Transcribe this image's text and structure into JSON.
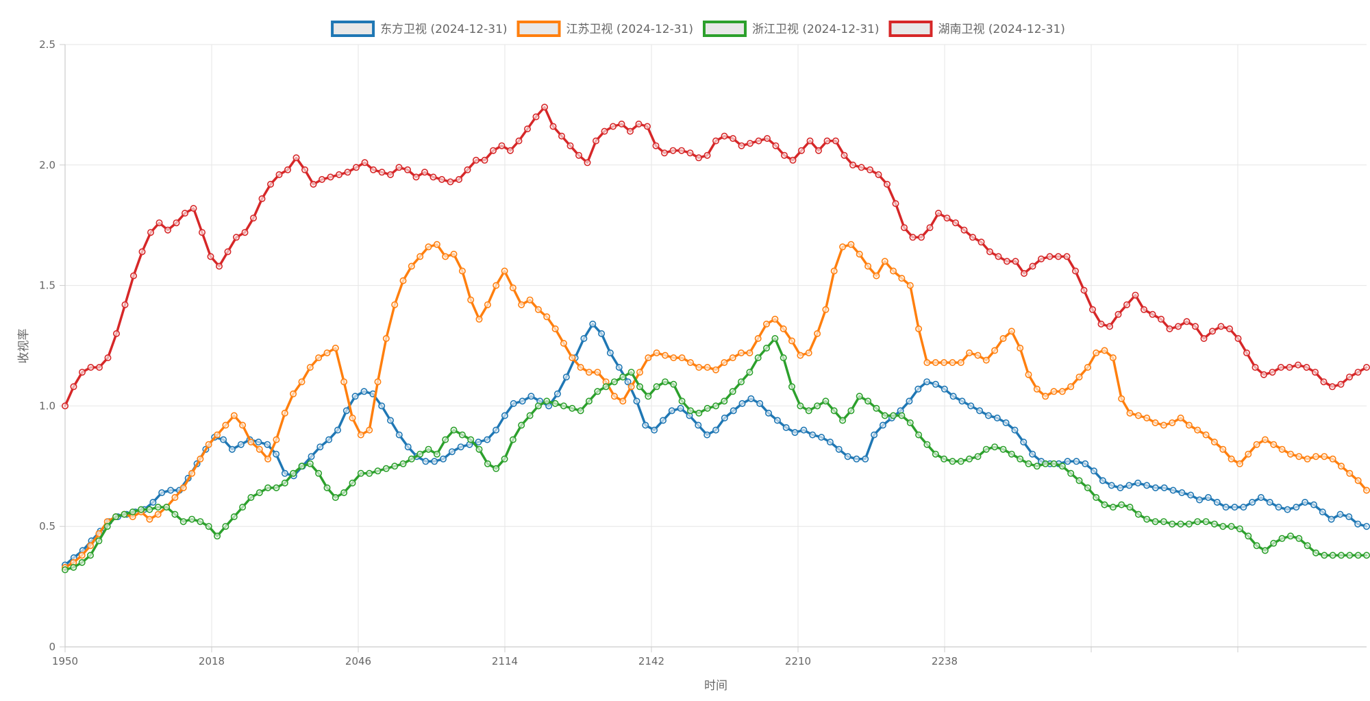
{
  "chart_data": {
    "type": "line",
    "xlabel": "时间",
    "ylabel": "收视率",
    "ylim": [
      0,
      2.5
    ],
    "y_ticks": [
      "0",
      "0.5",
      "1.0",
      "1.5",
      "2.0",
      "2.5"
    ],
    "x_tick_labels": [
      "1950",
      "2018",
      "2046",
      "2114",
      "2142",
      "2210",
      "2238"
    ],
    "grid": true,
    "legend_position": "top-center",
    "series": [
      {
        "name": "东方卫视 (2024-12-31)",
        "color": "#1f77b4",
        "values": [
          0.34,
          0.37,
          0.4,
          0.44,
          0.48,
          0.52,
          0.54,
          0.55,
          0.56,
          0.57,
          0.6,
          0.64,
          0.65,
          0.65,
          0.7,
          0.76,
          0.82,
          0.87,
          0.86,
          0.82,
          0.84,
          0.86,
          0.85,
          0.84,
          0.8,
          0.72,
          0.71,
          0.75,
          0.79,
          0.83,
          0.86,
          0.9,
          0.98,
          1.04,
          1.06,
          1.05,
          1.0,
          0.94,
          0.88,
          0.83,
          0.79,
          0.77,
          0.77,
          0.78,
          0.81,
          0.83,
          0.84,
          0.85,
          0.86,
          0.9,
          0.96,
          1.01,
          1.02,
          1.04,
          1.02,
          1.0,
          1.05,
          1.12,
          1.2,
          1.28,
          1.34,
          1.3,
          1.22,
          1.16,
          1.1,
          1.02,
          0.92,
          0.9,
          0.94,
          0.98,
          0.99,
          0.96,
          0.92,
          0.88,
          0.9,
          0.95,
          0.98,
          1.01,
          1.03,
          1.01,
          0.97,
          0.94,
          0.91,
          0.89,
          0.9,
          0.88,
          0.87,
          0.85,
          0.82,
          0.79,
          0.78,
          0.78,
          0.88,
          0.92,
          0.95,
          0.98,
          1.02,
          1.07,
          1.1,
          1.09,
          1.07,
          1.04,
          1.02,
          1.0,
          0.98,
          0.96,
          0.95,
          0.93,
          0.9,
          0.85,
          0.8,
          0.77,
          0.76,
          0.76,
          0.77,
          0.77,
          0.76,
          0.73,
          0.69,
          0.67,
          0.66,
          0.67,
          0.68,
          0.67,
          0.66,
          0.66,
          0.65,
          0.64,
          0.63,
          0.61,
          0.62,
          0.6,
          0.58,
          0.58,
          0.58,
          0.6,
          0.62,
          0.6,
          0.58,
          0.57,
          0.58,
          0.6,
          0.59,
          0.56,
          0.53,
          0.55,
          0.54,
          0.51,
          0.5
        ]
      },
      {
        "name": "江苏卫视 (2024-12-31)",
        "color": "#ff7f0e",
        "values": [
          0.33,
          0.35,
          0.38,
          0.42,
          0.47,
          0.52,
          0.54,
          0.55,
          0.54,
          0.56,
          0.53,
          0.55,
          0.58,
          0.62,
          0.66,
          0.72,
          0.78,
          0.84,
          0.88,
          0.92,
          0.96,
          0.92,
          0.85,
          0.82,
          0.78,
          0.86,
          0.97,
          1.05,
          1.1,
          1.16,
          1.2,
          1.22,
          1.24,
          1.1,
          0.95,
          0.88,
          0.9,
          1.1,
          1.28,
          1.42,
          1.52,
          1.58,
          1.62,
          1.66,
          1.67,
          1.62,
          1.63,
          1.56,
          1.44,
          1.36,
          1.42,
          1.5,
          1.56,
          1.49,
          1.42,
          1.44,
          1.4,
          1.37,
          1.32,
          1.26,
          1.2,
          1.16,
          1.14,
          1.14,
          1.1,
          1.04,
          1.02,
          1.08,
          1.14,
          1.2,
          1.22,
          1.21,
          1.2,
          1.2,
          1.18,
          1.16,
          1.16,
          1.15,
          1.18,
          1.2,
          1.22,
          1.22,
          1.28,
          1.34,
          1.36,
          1.32,
          1.27,
          1.21,
          1.22,
          1.3,
          1.4,
          1.56,
          1.66,
          1.67,
          1.63,
          1.58,
          1.54,
          1.6,
          1.56,
          1.53,
          1.5,
          1.32,
          1.18,
          1.18,
          1.18,
          1.18,
          1.18,
          1.22,
          1.21,
          1.19,
          1.23,
          1.28,
          1.31,
          1.24,
          1.13,
          1.07,
          1.04,
          1.06,
          1.06,
          1.08,
          1.12,
          1.16,
          1.22,
          1.23,
          1.2,
          1.03,
          0.97,
          0.96,
          0.95,
          0.93,
          0.92,
          0.93,
          0.95,
          0.92,
          0.9,
          0.88,
          0.85,
          0.82,
          0.78,
          0.76,
          0.8,
          0.84,
          0.86,
          0.84,
          0.82,
          0.8,
          0.79,
          0.78,
          0.79,
          0.79,
          0.78,
          0.75,
          0.72,
          0.69,
          0.65
        ]
      },
      {
        "name": "浙江卫视 (2024-12-31)",
        "color": "#2ca02c",
        "values": [
          0.32,
          0.33,
          0.35,
          0.38,
          0.44,
          0.5,
          0.54,
          0.55,
          0.56,
          0.57,
          0.57,
          0.58,
          0.58,
          0.55,
          0.52,
          0.53,
          0.52,
          0.5,
          0.46,
          0.5,
          0.54,
          0.58,
          0.62,
          0.64,
          0.66,
          0.66,
          0.68,
          0.72,
          0.75,
          0.76,
          0.72,
          0.66,
          0.62,
          0.64,
          0.68,
          0.72,
          0.72,
          0.73,
          0.74,
          0.75,
          0.76,
          0.78,
          0.8,
          0.82,
          0.8,
          0.86,
          0.9,
          0.88,
          0.86,
          0.82,
          0.76,
          0.74,
          0.78,
          0.86,
          0.92,
          0.96,
          1.0,
          1.02,
          1.01,
          1.0,
          0.99,
          0.98,
          1.02,
          1.06,
          1.08,
          1.1,
          1.12,
          1.14,
          1.08,
          1.04,
          1.08,
          1.1,
          1.09,
          1.02,
          0.98,
          0.97,
          0.99,
          1.0,
          1.02,
          1.06,
          1.1,
          1.14,
          1.2,
          1.24,
          1.28,
          1.2,
          1.08,
          1.0,
          0.98,
          1.0,
          1.02,
          0.98,
          0.94,
          0.98,
          1.04,
          1.02,
          0.99,
          0.96,
          0.96,
          0.96,
          0.93,
          0.88,
          0.84,
          0.8,
          0.78,
          0.77,
          0.77,
          0.78,
          0.79,
          0.82,
          0.83,
          0.82,
          0.8,
          0.78,
          0.76,
          0.75,
          0.76,
          0.76,
          0.75,
          0.72,
          0.69,
          0.66,
          0.62,
          0.59,
          0.58,
          0.59,
          0.58,
          0.55,
          0.53,
          0.52,
          0.52,
          0.51,
          0.51,
          0.51,
          0.52,
          0.52,
          0.51,
          0.5,
          0.5,
          0.49,
          0.46,
          0.42,
          0.4,
          0.43,
          0.45,
          0.46,
          0.45,
          0.42,
          0.39,
          0.38,
          0.38,
          0.38,
          0.38,
          0.38,
          0.38
        ]
      },
      {
        "name": "湖南卫视 (2024-12-31)",
        "color": "#d62728",
        "values": [
          1.0,
          1.08,
          1.14,
          1.16,
          1.16,
          1.2,
          1.3,
          1.42,
          1.54,
          1.64,
          1.72,
          1.76,
          1.73,
          1.76,
          1.8,
          1.82,
          1.72,
          1.62,
          1.58,
          1.64,
          1.7,
          1.72,
          1.78,
          1.86,
          1.92,
          1.96,
          1.98,
          2.03,
          1.98,
          1.92,
          1.94,
          1.95,
          1.96,
          1.97,
          1.99,
          2.01,
          1.98,
          1.97,
          1.96,
          1.99,
          1.98,
          1.95,
          1.97,
          1.95,
          1.94,
          1.93,
          1.94,
          1.98,
          2.02,
          2.02,
          2.06,
          2.08,
          2.06,
          2.1,
          2.15,
          2.2,
          2.24,
          2.16,
          2.12,
          2.08,
          2.04,
          2.01,
          2.1,
          2.14,
          2.16,
          2.17,
          2.14,
          2.17,
          2.16,
          2.08,
          2.05,
          2.06,
          2.06,
          2.05,
          2.03,
          2.04,
          2.1,
          2.12,
          2.11,
          2.08,
          2.09,
          2.1,
          2.11,
          2.08,
          2.04,
          2.02,
          2.06,
          2.1,
          2.06,
          2.1,
          2.1,
          2.04,
          2.0,
          1.99,
          1.98,
          1.96,
          1.92,
          1.84,
          1.74,
          1.7,
          1.7,
          1.74,
          1.8,
          1.78,
          1.76,
          1.73,
          1.7,
          1.68,
          1.64,
          1.62,
          1.6,
          1.6,
          1.55,
          1.58,
          1.61,
          1.62,
          1.62,
          1.62,
          1.56,
          1.48,
          1.4,
          1.34,
          1.33,
          1.38,
          1.42,
          1.46,
          1.4,
          1.38,
          1.36,
          1.32,
          1.33,
          1.35,
          1.33,
          1.28,
          1.31,
          1.33,
          1.32,
          1.28,
          1.22,
          1.16,
          1.13,
          1.14,
          1.16,
          1.16,
          1.17,
          1.16,
          1.14,
          1.1,
          1.08,
          1.09,
          1.12,
          1.14,
          1.16
        ]
      }
    ]
  }
}
